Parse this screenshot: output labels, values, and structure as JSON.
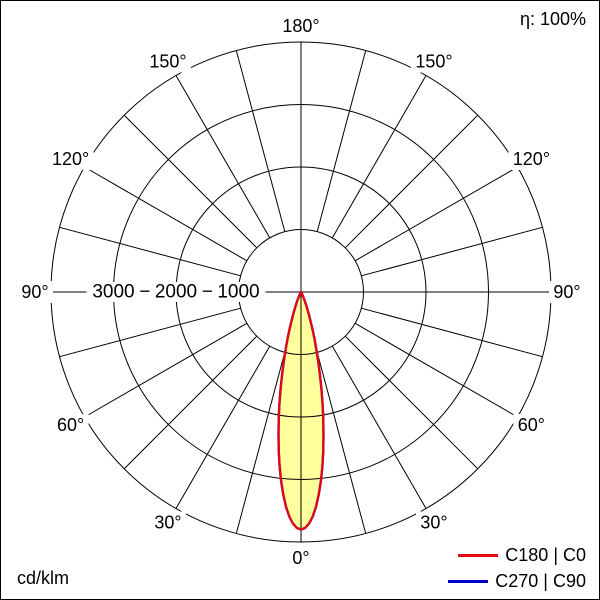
{
  "header": {
    "efficiency_label": "η: 100%"
  },
  "footer": {
    "unit_label": "cd/klm"
  },
  "legend": {
    "items": [
      {
        "label": "C180 | C0",
        "color": "#e30613"
      },
      {
        "label": "C270 | C90",
        "color": "#0000cc"
      }
    ]
  },
  "chart_data": {
    "type": "polar",
    "subtype": "luminous-intensity-distribution",
    "unit": "cd/klm",
    "efficiency_percent": 100,
    "angle_axis": {
      "zero_position": "bottom",
      "labels_deg": [
        0,
        30,
        60,
        90,
        120,
        150,
        180
      ],
      "label_suffix": "°",
      "spoke_step_deg": 15,
      "mirrored": true
    },
    "r_axis": {
      "max": 4000,
      "label_separator": "−",
      "rings": [
        {
          "value": 1000,
          "label": "1000"
        },
        {
          "value": 2000,
          "label": "2000"
        },
        {
          "value": 3000,
          "label": "3000"
        },
        {
          "value": 4000,
          "label": ""
        }
      ]
    },
    "series": [
      {
        "name": "C180 | C0",
        "color": "#e30613",
        "fill": "#ffff9e",
        "gamma_deg": [
          0,
          1,
          2,
          3,
          4,
          5,
          6,
          7,
          8,
          9,
          10,
          11,
          12,
          13,
          14,
          15,
          16,
          17,
          18,
          19,
          20,
          21,
          22,
          23,
          24,
          25,
          26,
          27,
          28,
          29,
          30,
          32,
          35,
          40
        ],
        "values_cd_klm": [
          3800,
          3777,
          3707,
          3595,
          3443,
          3257,
          3043,
          2809,
          2561,
          2305,
          2051,
          1802,
          1563,
          1340,
          1134,
          948,
          783,
          639,
          515,
          410,
          322,
          250,
          192,
          146,
          109,
          81,
          59,
          43,
          31,
          22,
          15,
          7,
          2,
          0
        ]
      },
      {
        "name": "C270 | C90",
        "color": "#0000cc",
        "fill": null,
        "gamma_deg": [
          0,
          1,
          2,
          3,
          4,
          5,
          6,
          7,
          8,
          9,
          10,
          11,
          12,
          13,
          14,
          15,
          16,
          17,
          18,
          19,
          20,
          21,
          22,
          23,
          24,
          25,
          26,
          27,
          28,
          29,
          30,
          32,
          35,
          40
        ],
        "values_cd_klm": [
          3800,
          3777,
          3707,
          3595,
          3443,
          3257,
          3043,
          2809,
          2561,
          2305,
          2051,
          1802,
          1563,
          1340,
          1134,
          948,
          783,
          639,
          515,
          410,
          322,
          250,
          192,
          146,
          109,
          81,
          59,
          43,
          31,
          22,
          15,
          7,
          2,
          0
        ]
      }
    ]
  }
}
